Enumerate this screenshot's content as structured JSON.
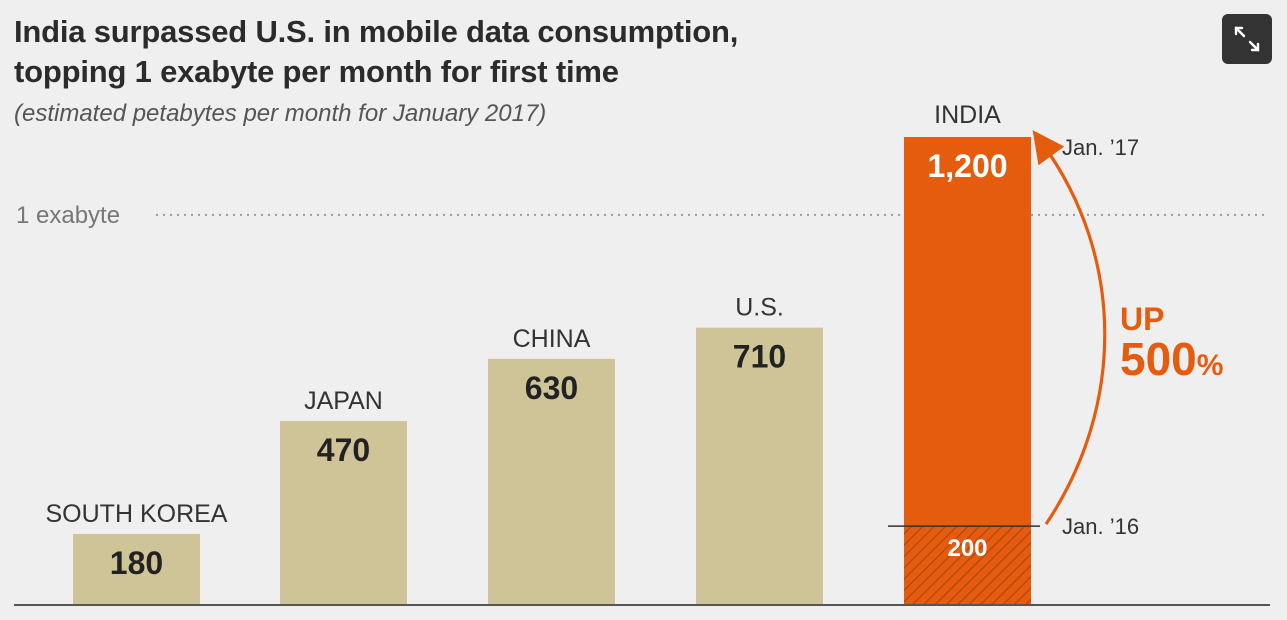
{
  "title_line1": "India surpassed U.S. in mobile data consumption,",
  "title_line2": "topping 1 exabyte per month for first time",
  "subtitle": "(estimated petabytes per month for January 2017)",
  "expand_icon": "expand-icon",
  "colors": {
    "tan": "#cfc497",
    "orange": "#e65c0f",
    "hatch": "#c8551a",
    "background": "#efefef"
  },
  "chart_data": {
    "type": "bar",
    "categories": [
      "SOUTH KOREA",
      "JAPAN",
      "CHINA",
      "U.S.",
      "INDIA"
    ],
    "values": [
      180,
      470,
      630,
      710,
      1200
    ],
    "value_labels": [
      "180",
      "470",
      "630",
      "710",
      "1,200"
    ],
    "highlight": "INDIA",
    "india_previous": {
      "value": 200,
      "label": "200",
      "date_label": "Jan. ’16"
    },
    "india_current_date_label": "Jan. ’17",
    "reference_line": {
      "value": 1000,
      "label": "1 exabyte"
    },
    "growth_annotation": {
      "line1": "UP",
      "number": "500",
      "unit": "%"
    },
    "ylim": [
      0,
      1200
    ],
    "grid": false
  }
}
